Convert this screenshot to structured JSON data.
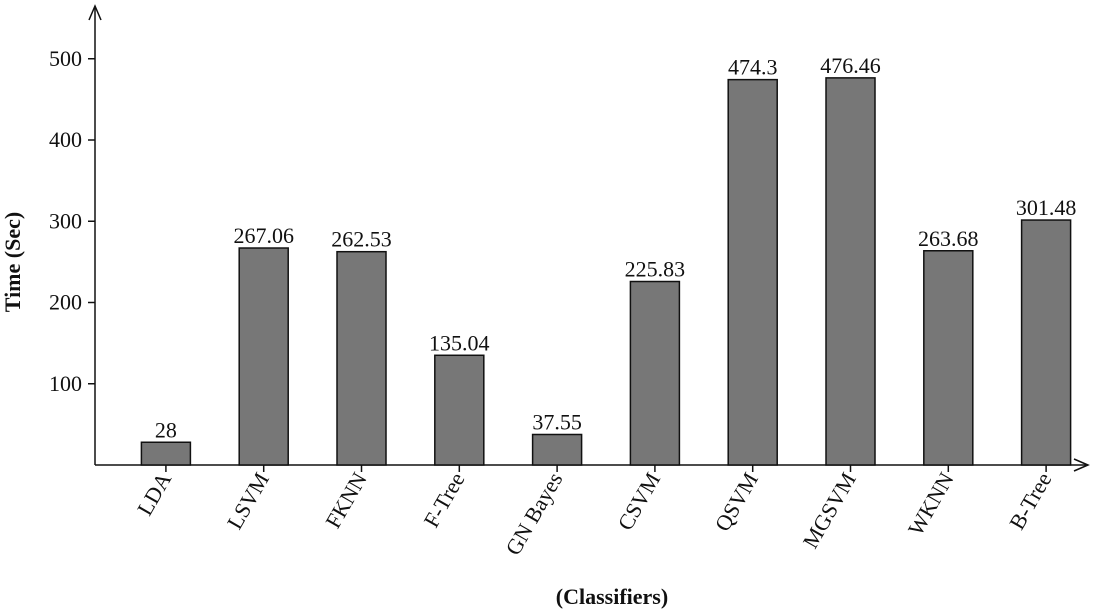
{
  "chart_data": {
    "type": "bar",
    "title": "",
    "xlabel": "(Classifiers)",
    "ylabel": "Time (Sec)",
    "categories": [
      "LDA",
      "LSVM",
      "FKNN",
      "F-Tree",
      "GN Bayes",
      "CSVM",
      "QSVM",
      "MGSVM",
      "WKNN",
      "B-Tree"
    ],
    "values": [
      28,
      267.06,
      262.53,
      135.04,
      37.55,
      225.83,
      474.3,
      476.46,
      263.68,
      301.48
    ],
    "value_labels": [
      "28",
      "267.06",
      "262.53",
      "135.04",
      "37.55",
      "225.83",
      "474.3",
      "476.46",
      "263.68",
      "301.48"
    ],
    "yticks": [
      100,
      200,
      300,
      400,
      500
    ],
    "ytick_labels": [
      "100",
      "200",
      "300",
      "400",
      "500"
    ],
    "ylim": [
      0,
      500
    ],
    "grid": false,
    "bar_color": "#777777",
    "bar_edge_color": "#111111"
  }
}
